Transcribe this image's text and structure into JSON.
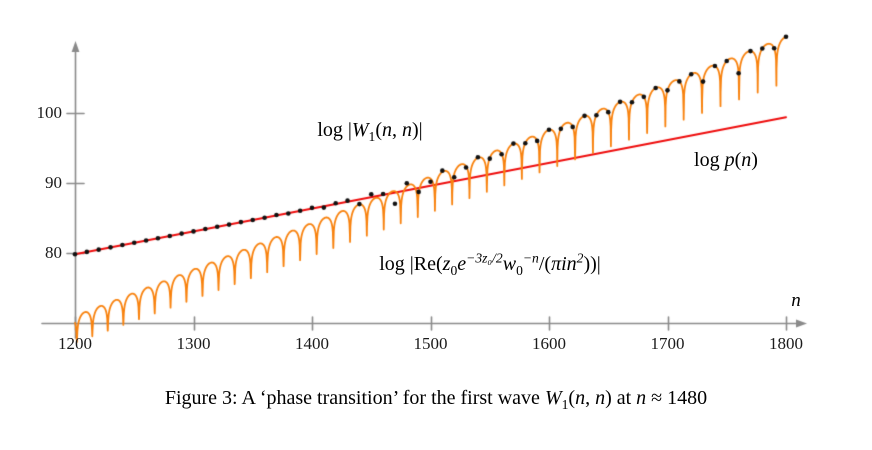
{
  "figure": {
    "colors": {
      "red": "#ee0c0c",
      "orange": "#f8820e",
      "dots": "#111111",
      "axis": "#8a8a8a",
      "text": "#1b1b1b"
    },
    "labels": {
      "w1": [
        {
          "s": "log |"
        },
        {
          "s": "W",
          "i": 1
        },
        {
          "s": "1",
          "v": "sub"
        },
        {
          "s": "("
        },
        {
          "s": "n",
          "i": 1
        },
        {
          "s": ", "
        },
        {
          "s": "n",
          "i": 1
        },
        {
          "s": ")|"
        }
      ],
      "p": [
        {
          "s": "log "
        },
        {
          "s": "p",
          "i": 1
        },
        {
          "s": "("
        },
        {
          "s": "n",
          "i": 1
        },
        {
          "s": ")"
        }
      ],
      "re": [
        {
          "s": "log |Re("
        },
        {
          "s": "z",
          "i": 1
        },
        {
          "s": "0",
          "v": "sub"
        },
        {
          "s": "e",
          "i": 1
        },
        {
          "s": "−3z₀/2",
          "v": "sup",
          "i": 1
        },
        {
          "s": "w",
          "i": 1
        },
        {
          "s": "0",
          "v": "sub"
        },
        {
          "s": "−n",
          "v": "sup",
          "i": 1
        },
        {
          "s": "/("
        },
        {
          "s": "πin",
          "i": 1
        },
        {
          "s": "2",
          "v": "sup",
          "i": 1
        },
        {
          "s": "))|"
        }
      ],
      "axis_x": "n"
    },
    "caption_segments": [
      {
        "s": "Figure 3: A ‘phase transition’ for the first wave "
      },
      {
        "s": "W",
        "i": 1
      },
      {
        "s": "1",
        "v": "sub"
      },
      {
        "s": "("
      },
      {
        "s": "n",
        "i": 1
      },
      {
        "s": ", "
      },
      {
        "s": "n",
        "i": 1
      },
      {
        "s": ") at "
      },
      {
        "s": "n",
        "i": 1
      },
      {
        "s": " ≈ 1480"
      }
    ]
  },
  "chart_data": {
    "type": "line",
    "title": "",
    "xlabel": "n",
    "ylabel": "",
    "x_ticks": [
      1200,
      1300,
      1400,
      1500,
      1600,
      1700,
      1800
    ],
    "y_ticks": [
      80,
      90,
      100
    ],
    "xlim": [
      1172,
      1818
    ],
    "ylim": [
      68,
      110
    ],
    "grid": false,
    "legend": "inline-annotations",
    "transition_n": 1480,
    "series": [
      {
        "name": "log p(n)",
        "type": "line",
        "color_key": "red",
        "points": [
          [
            1200,
            79.83
          ],
          [
            1800,
            99.4
          ]
        ]
      },
      {
        "name": "log |W1(n,n)|",
        "type": "scatter",
        "color_key": "dots",
        "x_start": 1200,
        "x_end": 1800,
        "x_step": 10,
        "rule": "ln|exp(logp(n)) + exp(env(n))*cos(theta(n))|",
        "outlier_floor_below_logp": 3.0
      },
      {
        "name": "log |Re(z0 e^{-3z0/2} w0^{-n}/(pi i n^2))|",
        "type": "cusped-line",
        "color_key": "orange",
        "envelope_points": [
          [
            1200,
            71.0
          ],
          [
            1800,
            110.9
          ]
        ],
        "theta": {
          "c": 16.8,
          "b": 0.41
        },
        "cusp_depth_range": [
          3.8,
          6.5
        ],
        "cusps_between": "theta = (k+1/2)*pi"
      }
    ]
  }
}
